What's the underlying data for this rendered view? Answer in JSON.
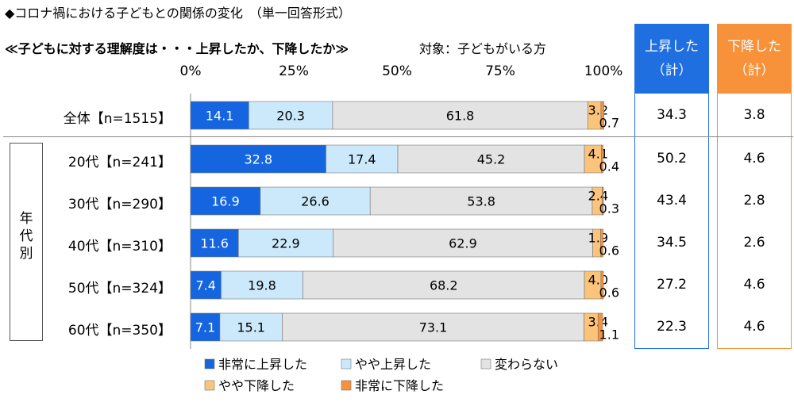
{
  "title": "◆コロナ禍における子どもとの関係の変化　（単一回答形式）",
  "subtitle": "≪子どもに対する理解度は・・・上昇したか、下降したか≫",
  "subject": "対象：子どもがいる方",
  "group_label": "年代別",
  "summary_headers": {
    "up": "上昇した（計）",
    "up_line1": "上昇した",
    "up_line2": "（計）",
    "down": "下降した（計）",
    "down_line1": "下降した",
    "down_line2": "（計）"
  },
  "colors": {
    "very_up": "#1565e0",
    "some_up": "#cce9fb",
    "same": "#e3e3e3",
    "some_down": "#fcc47a",
    "very_down": "#f7923a",
    "up_box": "#1f6fe0",
    "down_box": "#f7923a"
  },
  "chart_data": {
    "type": "bar",
    "orientation": "horizontal",
    "stacked": true,
    "xlim": [
      0,
      100
    ],
    "x_ticks": [
      "0%",
      "25%",
      "50%",
      "75%",
      "100%"
    ],
    "categories": [
      "全体【n=1515】",
      "20代【n=241】",
      "30代【n=290】",
      "40代【n=310】",
      "50代【n=324】",
      "60代【n=350】"
    ],
    "series": [
      {
        "name": "非常に上昇した",
        "values": [
          14.1,
          32.8,
          16.9,
          11.6,
          7.4,
          7.1
        ]
      },
      {
        "name": "やや上昇した",
        "values": [
          20.3,
          17.4,
          26.6,
          22.9,
          19.8,
          15.1
        ]
      },
      {
        "name": "変わらない",
        "values": [
          61.8,
          45.2,
          53.8,
          62.9,
          68.2,
          73.1
        ]
      },
      {
        "name": "やや下降した",
        "values": [
          3.2,
          4.1,
          2.4,
          1.9,
          4.0,
          3.4
        ]
      },
      {
        "name": "非常に下降した",
        "values": [
          0.7,
          0.4,
          0.3,
          0.6,
          0.6,
          1.1
        ]
      }
    ],
    "summary_up": [
      "34.3",
      "50.2",
      "43.4",
      "34.5",
      "27.2",
      "22.3"
    ],
    "summary_down": [
      "3.8",
      "4.6",
      "2.8",
      "2.6",
      "4.6",
      "4.6"
    ],
    "legend": [
      "非常に上昇した",
      "やや上昇した",
      "変わらない",
      "やや下降した",
      "非常に下降した"
    ]
  }
}
